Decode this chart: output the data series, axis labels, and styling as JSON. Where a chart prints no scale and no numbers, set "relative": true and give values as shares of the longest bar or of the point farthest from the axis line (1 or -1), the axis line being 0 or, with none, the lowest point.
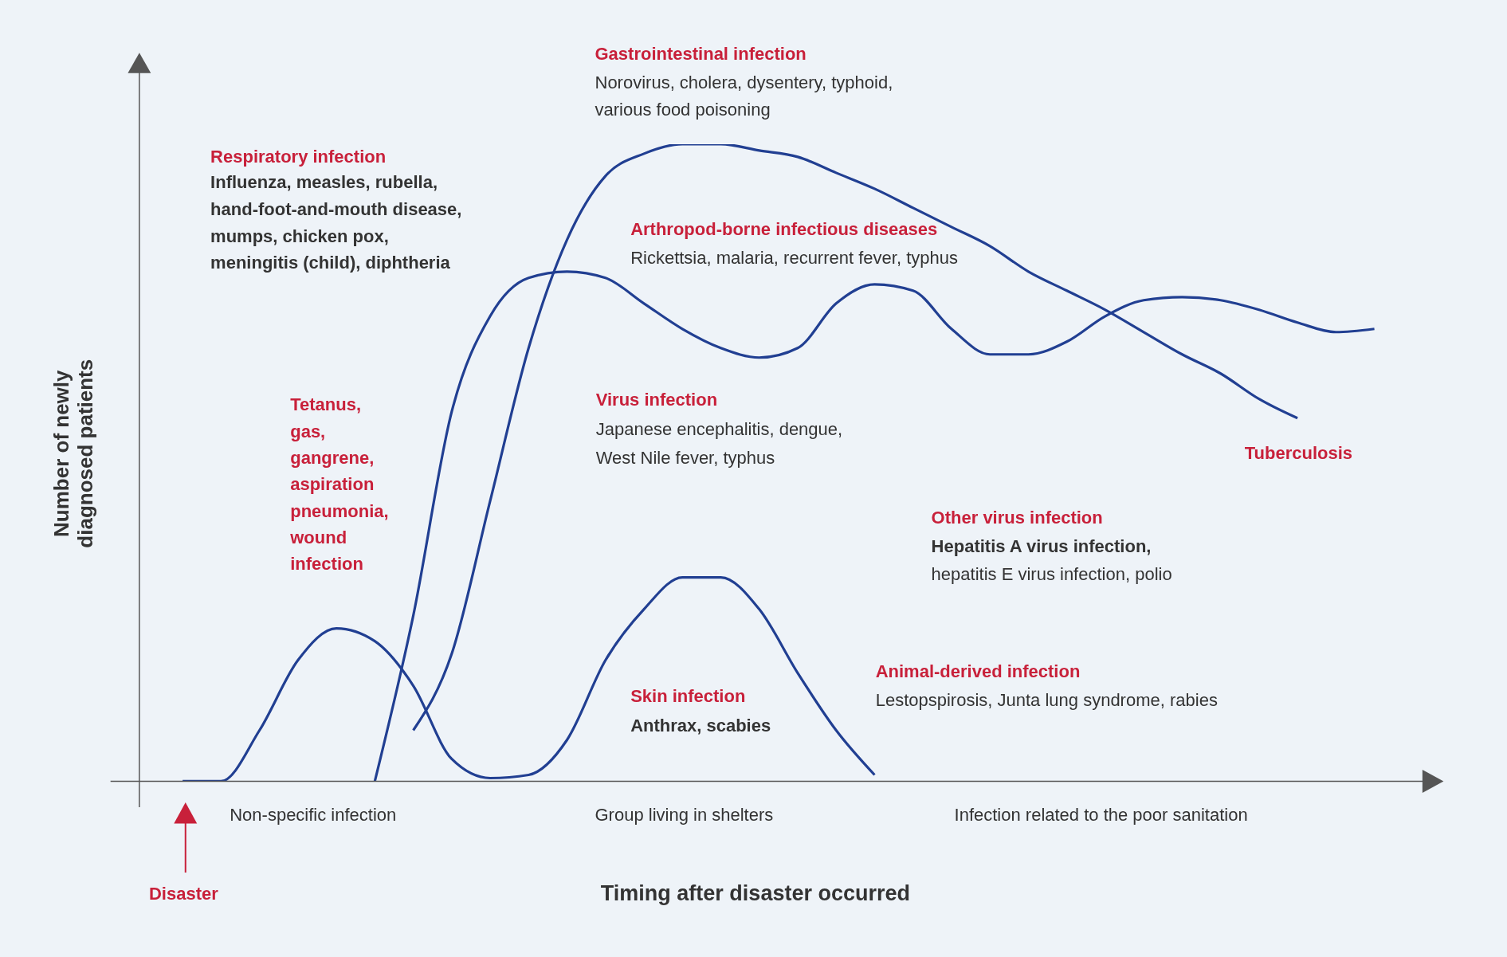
{
  "chart_data": {
    "type": "line",
    "relative": true,
    "xlabel": "Timing after disaster occurred",
    "ylabel": "Number of newly diagnosed patients",
    "marker": "none",
    "line_style": "solid",
    "categories": [
      null,
      null,
      null,
      null,
      null,
      null,
      null,
      null,
      null,
      null,
      null,
      null,
      null,
      null,
      null,
      null,
      null,
      null,
      null,
      null,
      null,
      null,
      null,
      null,
      null,
      null,
      null,
      null,
      null,
      null,
      null,
      null,
      null,
      null
    ],
    "series": [
      {
        "color": "#213f92",
        "values": [
          null,
          0,
          0,
          0.08,
          0.19,
          0.24,
          0.22,
          0.15,
          0.035,
          0.005,
          0.01,
          0.065,
          0.19,
          0.27,
          0.32,
          0.32,
          0.27,
          0.17,
          0.08,
          0.01,
          null,
          null,
          null,
          null,
          null,
          null,
          null,
          null,
          null,
          null,
          null,
          null,
          null,
          null
        ]
      },
      {
        "color": "#213f92",
        "values": [
          null,
          null,
          null,
          null,
          null,
          null,
          0,
          0.26,
          0.58,
          0.73,
          0.79,
          0.8,
          0.79,
          0.75,
          0.71,
          0.68,
          0.665,
          0.68,
          0.75,
          0.78,
          0.77,
          0.71,
          0.67,
          0.67,
          0.69,
          0.73,
          0.755,
          0.76,
          0.755,
          0.74,
          0.72,
          0.705,
          0.71,
          null
        ]
      },
      {
        "color": "#213f92",
        "values": [
          null,
          null,
          null,
          null,
          null,
          null,
          null,
          0.08,
          0.2,
          0.44,
          0.68,
          0.85,
          0.95,
          0.985,
          1,
          1,
          0.99,
          0.98,
          0.955,
          0.93,
          0.9,
          0.87,
          0.84,
          0.8,
          0.77,
          0.74,
          0.705,
          0.67,
          0.64,
          0.6,
          0.57,
          null,
          null,
          null
        ]
      }
    ],
    "annotations": [
      "Gastrointestinal infection",
      "Norovirus, cholera, dysentery, typhoid,",
      "various food poisoning",
      "Respiratory infection",
      "Influenza, measles, rubella,",
      "hand-foot-and-mouth disease,",
      "mumps, chicken pox,",
      "meningitis (child), diphtheria",
      "Arthropod-borne infectious diseases",
      "Rickettsia, malaria, recurrent fever, typhus",
      "Tetanus,",
      "gas,",
      "gangrene,",
      "aspiration",
      "pneumonia,",
      "wound",
      "infection",
      "Virus infection",
      "Japanese encephalitis, dengue,",
      "West Nile fever, typhus",
      "Tuberculosis",
      "Other virus infection",
      "Hepatitis A virus infection,",
      "hepatitis E virus infection, polio",
      "Animal-derived infection",
      "Lestopspirosis, Junta lung syndrome, rabies",
      "Skin infection",
      "Anthrax, scabies",
      "Non-specific infection",
      "Group living in shelters",
      "Infection related to the poor sanitation",
      "Disaster"
    ]
  }
}
